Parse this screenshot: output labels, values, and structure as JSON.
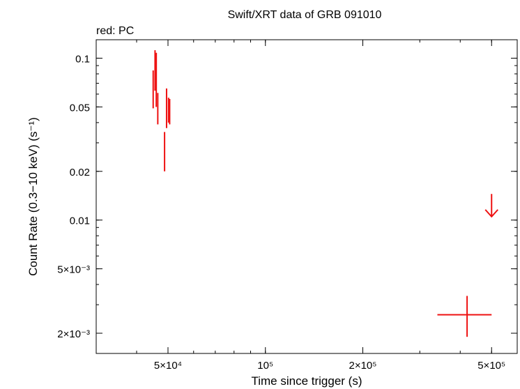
{
  "chart_data": {
    "type": "scatter",
    "title": "Swift/XRT data of GRB 091010",
    "subtitle": "red: PC",
    "xlabel": "Time since trigger (s)",
    "ylabel": "Count Rate (0.3−10 keV) (s⁻¹)",
    "xscale": "log",
    "yscale": "log",
    "xlim": [
      30000,
      600000
    ],
    "ylim": [
      0.0015,
      0.13
    ],
    "x_ticks": [
      {
        "value": 50000,
        "label": "5×10⁴"
      },
      {
        "value": 100000,
        "label": "10⁵"
      },
      {
        "value": 200000,
        "label": "2×10⁵"
      },
      {
        "value": 500000,
        "label": "5×10⁵"
      }
    ],
    "y_ticks": [
      {
        "value": 0.002,
        "label": "2×10⁻³"
      },
      {
        "value": 0.005,
        "label": "5×10⁻³"
      },
      {
        "value": 0.01,
        "label": "0.01"
      },
      {
        "value": 0.02,
        "label": "0.02"
      },
      {
        "value": 0.05,
        "label": "0.05"
      },
      {
        "value": 0.1,
        "label": "0.1"
      }
    ],
    "grid": false,
    "color": "#ee1111",
    "series": [
      {
        "points": [
          {
            "x": 45000,
            "y": 0.066,
            "xlo": 44900,
            "xhi": 45100,
            "ylo": 0.049,
            "yhi": 0.084
          },
          {
            "x": 45600,
            "y": 0.085,
            "xlo": 45500,
            "xhi": 45700,
            "ylo": 0.063,
            "yhi": 0.112
          },
          {
            "x": 46000,
            "y": 0.067,
            "xlo": 45900,
            "xhi": 46100,
            "ylo": 0.05,
            "yhi": 0.108
          },
          {
            "x": 46500,
            "y": 0.05,
            "xlo": 46400,
            "xhi": 46600,
            "ylo": 0.039,
            "yhi": 0.061
          },
          {
            "x": 48800,
            "y": 0.027,
            "xlo": 48700,
            "xhi": 48900,
            "ylo": 0.02,
            "yhi": 0.035
          },
          {
            "x": 49500,
            "y": 0.05,
            "xlo": 49400,
            "xhi": 49600,
            "ylo": 0.037,
            "yhi": 0.065
          },
          {
            "x": 50200,
            "y": 0.047,
            "xlo": 50100,
            "xhi": 50300,
            "ylo": 0.04,
            "yhi": 0.057
          },
          {
            "x": 50600,
            "y": 0.047,
            "xlo": 50500,
            "xhi": 50700,
            "ylo": 0.039,
            "yhi": 0.056
          },
          {
            "x": 420000,
            "y": 0.0026,
            "xlo": 340000,
            "xhi": 500000,
            "ylo": 0.0019,
            "yhi": 0.0034
          }
        ],
        "upper_limits": [
          {
            "x": 500000,
            "y": 0.0145,
            "arrow_to": 0.0105
          }
        ]
      }
    ]
  }
}
